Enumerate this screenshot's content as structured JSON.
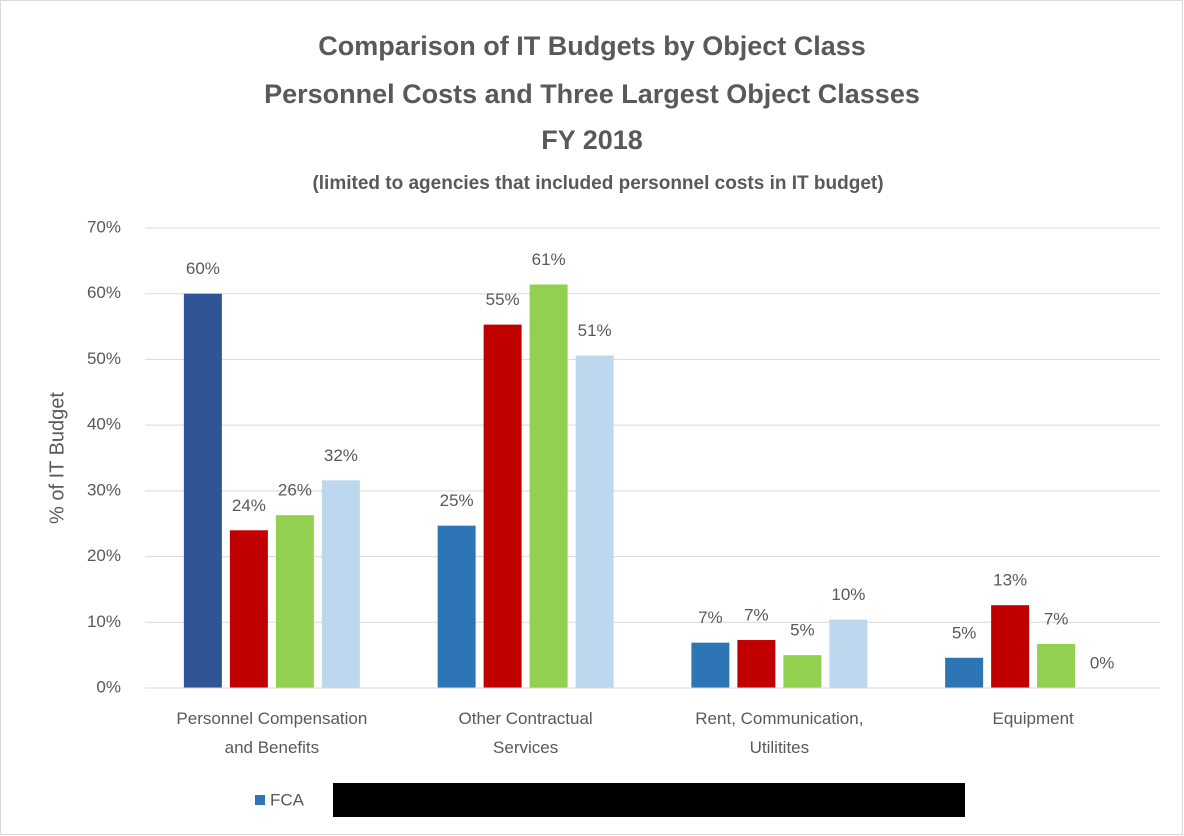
{
  "chart_data": {
    "type": "bar",
    "title": [
      "Comparison of IT Budgets by Object Class",
      "Personnel Costs and Three Largest Object Classes",
      "FY 2018"
    ],
    "subtitle": "(limited to agencies that included personnel costs in IT budget)",
    "y_label": "% of IT Budget",
    "categories": [
      "Personnel Compensation and Benefits",
      "Other Contractual Services",
      "Rent, Communication, Utilitites",
      "Equipment"
    ],
    "series": [
      {
        "name": "FCA",
        "color": "#2e75b6",
        "colors": [
          "#2f5597",
          "#2e75b6",
          "#2e75b6",
          "#2e75b6"
        ],
        "values": [
          60,
          24.7,
          6.9,
          4.6
        ],
        "value_labels": [
          "60%",
          "25%",
          "7%",
          "5%"
        ]
      },
      {
        "color": "#c00000",
        "values": [
          24.0,
          55.3,
          7.3,
          12.6
        ],
        "value_labels": [
          "24%",
          "55%",
          "7%",
          "13%"
        ]
      },
      {
        "color": "#92d050",
        "values": [
          26.3,
          61.4,
          5.0,
          6.7
        ],
        "value_labels": [
          "26%",
          "61%",
          "5%",
          "7%"
        ]
      },
      {
        "color": "#bdd7ee",
        "values": [
          31.6,
          50.6,
          10.4,
          0
        ],
        "value_labels": [
          "32%",
          "51%",
          "10%",
          "0%"
        ]
      }
    ],
    "ylim": [
      0,
      70
    ],
    "yticks": [
      {
        "value": 0,
        "label": "0%"
      },
      {
        "value": 10,
        "label": "10%"
      },
      {
        "value": 20,
        "label": "20%"
      },
      {
        "value": 30,
        "label": "30%"
      },
      {
        "value": 40,
        "label": "40%"
      },
      {
        "value": 50,
        "label": "50%"
      },
      {
        "value": 60,
        "label": "60%"
      },
      {
        "value": 70,
        "label": "70%"
      }
    ],
    "grid": true,
    "legend": "bottom"
  }
}
